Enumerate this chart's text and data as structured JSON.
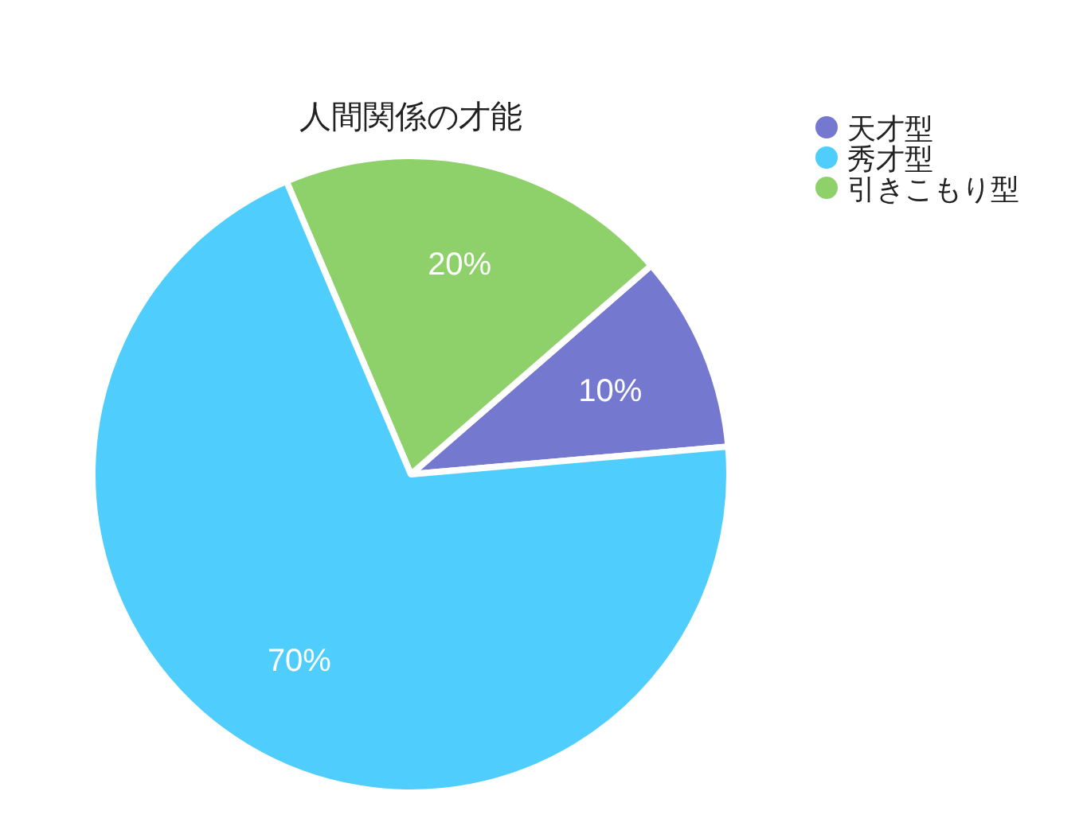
{
  "chart_data": {
    "type": "pie",
    "title": "人間関係の才能",
    "categories": [
      "天才型",
      "秀才型",
      "引きこもり型"
    ],
    "values": [
      10,
      70,
      20
    ],
    "colors": [
      "#7479cf",
      "#4fcdfd",
      "#8ed069"
    ],
    "value_labels": [
      "10%",
      "70%",
      "20%"
    ],
    "legend": "top right"
  }
}
